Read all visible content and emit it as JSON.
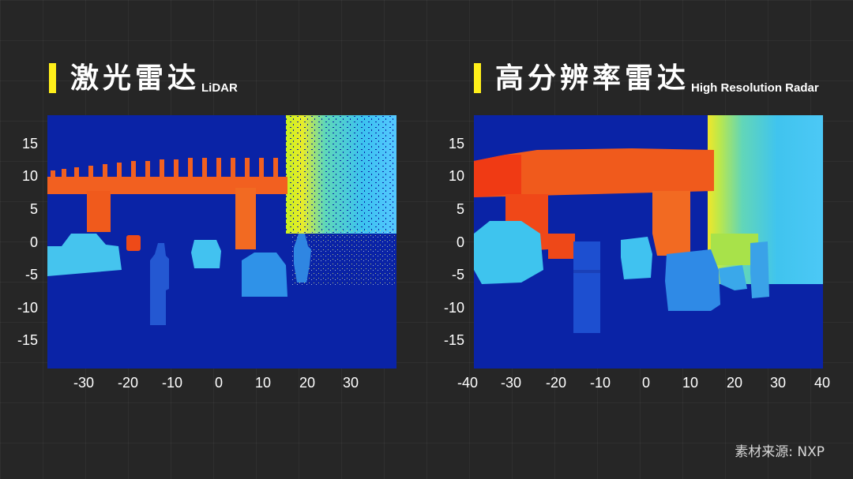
{
  "left": {
    "title": "激光雷达",
    "subtitle": "LiDAR",
    "y_ticks": [
      "15",
      "10",
      "5",
      "0",
      "-5",
      "-10",
      "-15"
    ],
    "x_ticks": [
      "-30",
      "-20",
      "-10",
      "0",
      "10",
      "20",
      "30"
    ]
  },
  "right": {
    "title": "高分辨率雷达",
    "subtitle": "High Resolution Radar",
    "y_ticks": [
      "15",
      "10",
      "5",
      "0",
      "-5",
      "-10",
      "-15"
    ],
    "x_ticks": [
      "-40",
      "-30",
      "-20",
      "-10",
      "0",
      "10",
      "20",
      "30",
      "40"
    ]
  },
  "source": "素材来源: NXP",
  "colors": {
    "background": "#262626",
    "accent": "#ffef1a",
    "plot_background": "#0a23a6"
  }
}
